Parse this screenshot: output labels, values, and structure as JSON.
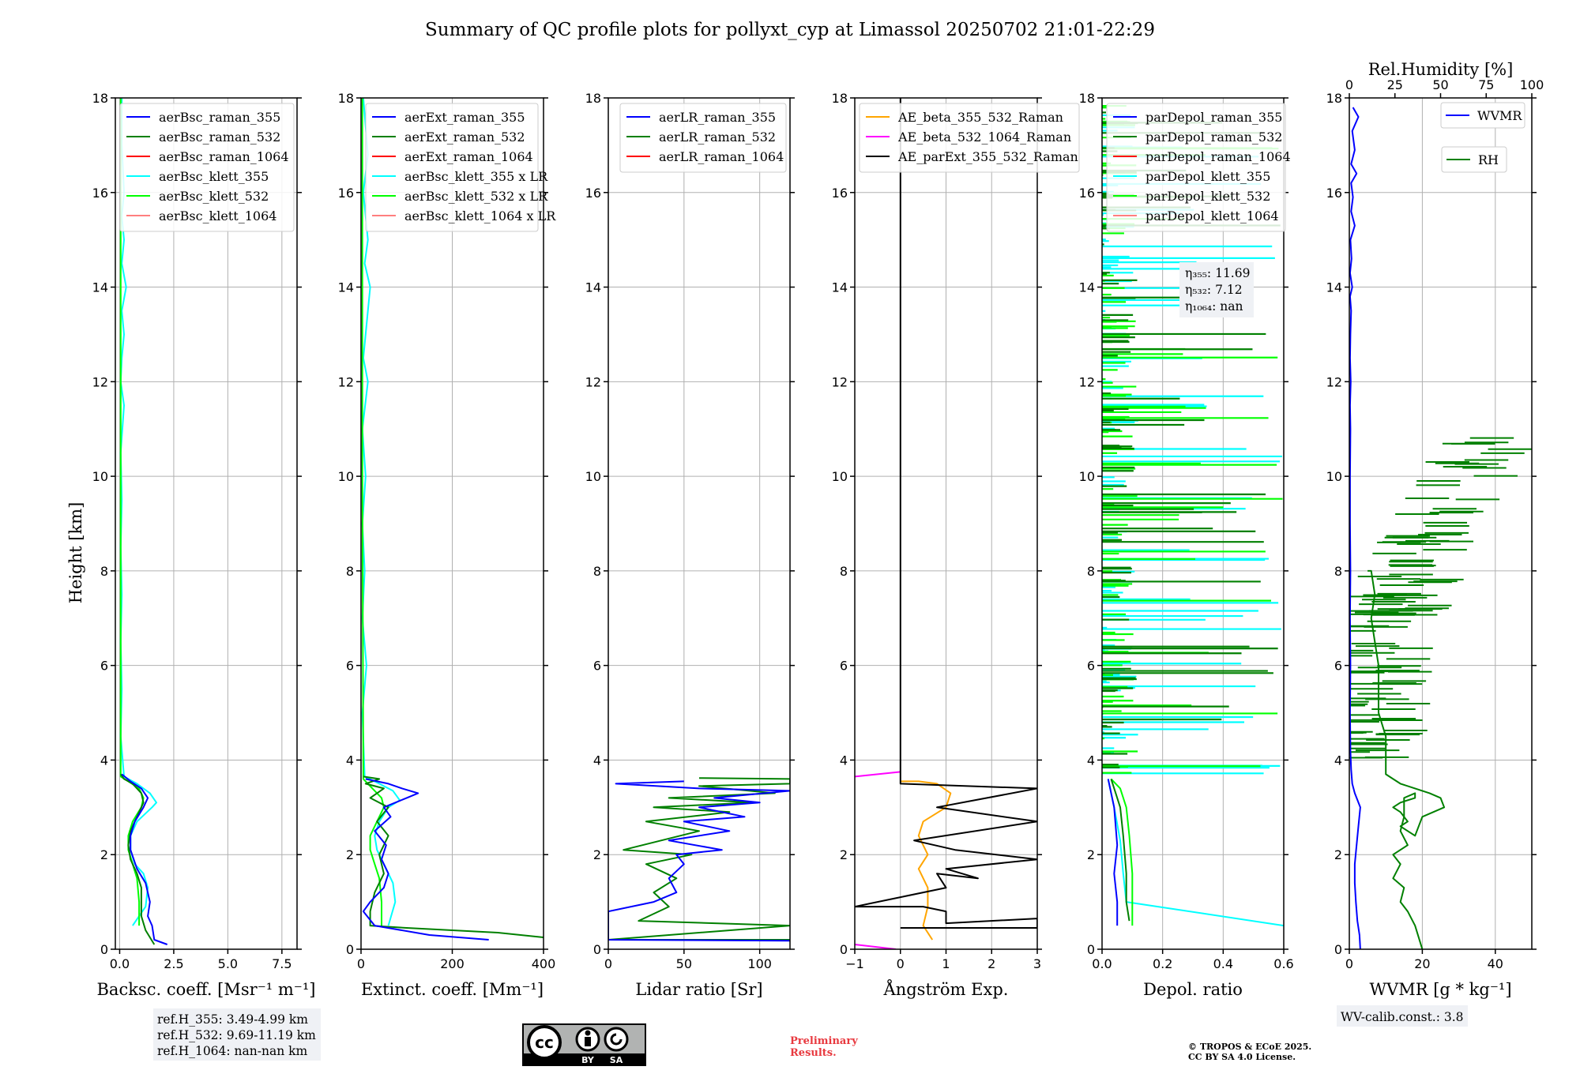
{
  "title": "Summary of QC profile plots for pollyxt_cyp at Limassol 20250702 21:01-22:29",
  "ylabel": "Height [km]",
  "colors": {
    "c355": "#0000ff",
    "c532": "#008000",
    "c1064": "#ff0000",
    "k355": "#00ffff",
    "k532": "#00ff00",
    "k1064": "#ff7f7f",
    "ae1": "#ffa500",
    "ae2": "#ff00ff",
    "ae3": "#000000"
  },
  "chart_data": [
    {
      "type": "line",
      "xlabel": "Backsc. coeff. [Msr⁻¹ m⁻¹]",
      "xlim": [
        -0.2,
        8.2
      ],
      "ylim": [
        0,
        18
      ],
      "xticks": [
        0,
        2.5,
        5,
        7.5
      ],
      "xticklabels": [
        "0.0",
        "2.5",
        "5.0",
        "7.5"
      ],
      "yticks": [
        0,
        2,
        4,
        6,
        8,
        10,
        12,
        14,
        16,
        18
      ],
      "legend": [
        "aerBsc_raman_355",
        "aerBsc_raman_532",
        "aerBsc_raman_1064",
        "aerBsc_klett_355",
        "aerBsc_klett_532",
        "aerBsc_klett_1064"
      ],
      "series": [
        {
          "name": "aerBsc_klett_355",
          "color": "k355",
          "x": [
            0.6,
            1.2,
            1.3,
            1.1,
            0.7,
            0.5,
            0.5,
            0.8,
            1.5,
            1.7,
            1.4,
            0.8,
            0.2,
            0.05,
            0.1,
            0.05,
            0.1,
            0.05,
            0.1,
            0.05,
            0.2,
            0.05,
            0.1,
            0.2,
            0.1,
            0.3,
            0.1,
            0.2,
            0.1,
            0.2,
            0.1,
            0.1
          ],
          "y": [
            0.5,
            0.9,
            1.3,
            1.6,
            1.8,
            2.1,
            2.4,
            2.7,
            3.0,
            3.1,
            3.3,
            3.5,
            3.65,
            4.5,
            5.5,
            6.5,
            7.5,
            8.5,
            9.5,
            10.5,
            11.5,
            12,
            12.5,
            13,
            13.5,
            14,
            14.5,
            15,
            15.5,
            16,
            17,
            18
          ]
        },
        {
          "name": "aerBsc_klett_532",
          "color": "k532",
          "x": [
            0.9,
            0.9,
            0.8,
            0.6,
            0.4,
            0.4,
            0.6,
            1.0,
            1.1,
            0.9,
            0.4,
            0.05,
            0.05,
            0.05
          ],
          "y": [
            0.5,
            1.0,
            1.5,
            1.8,
            2.1,
            2.4,
            2.7,
            3.0,
            3.2,
            3.4,
            3.55,
            3.65,
            10,
            18
          ]
        },
        {
          "name": "aerBsc_raman_532",
          "color": "c532",
          "x": [
            1.6,
            1.2,
            1.0,
            1.0,
            1.0,
            0.8,
            0.5,
            0.4,
            0.5,
            0.8,
            1.1,
            1.0,
            0.6,
            0.2,
            0.05
          ],
          "y": [
            0.1,
            0.4,
            0.7,
            1.0,
            1.3,
            1.6,
            1.9,
            2.2,
            2.5,
            2.8,
            3.1,
            3.3,
            3.5,
            3.6,
            3.7
          ]
        },
        {
          "name": "aerBsc_raman_355",
          "color": "c355",
          "x": [
            2.2,
            1.6,
            1.5,
            1.3,
            1.4,
            1.2,
            0.8,
            0.5,
            0.5,
            0.7,
            1.1,
            1.3,
            1.0,
            0.5,
            0.1
          ],
          "y": [
            0.1,
            0.2,
            0.5,
            0.7,
            1.0,
            1.4,
            1.7,
            2.1,
            2.4,
            2.7,
            3.0,
            3.2,
            3.4,
            3.55,
            3.7
          ]
        }
      ]
    },
    {
      "type": "line",
      "xlabel": "Extinct. coeff. [Mm⁻¹]",
      "xlim": [
        0,
        400
      ],
      "ylim": [
        0,
        18
      ],
      "xticks": [
        0,
        200,
        400
      ],
      "xticklabels": [
        "0",
        "200",
        "400"
      ],
      "yticks": [
        0,
        2,
        4,
        6,
        8,
        10,
        12,
        14,
        16,
        18
      ],
      "legend": [
        "aerExt_raman_355",
        "aerExt_raman_532",
        "aerExt_raman_1064",
        "aerBsc_klett_355 x LR",
        "aerBsc_klett_532 x LR",
        "aerBsc_klett_1064 x LR"
      ],
      "series": [
        {
          "name": "aerBsc_klett_355 x LR",
          "color": "k355",
          "x": [
            60,
            75,
            70,
            50,
            35,
            30,
            40,
            60,
            85,
            70,
            40,
            8,
            3,
            12,
            3,
            8,
            3,
            10,
            3,
            15,
            5,
            10,
            20,
            8,
            15,
            5,
            15,
            5
          ],
          "y": [
            0.5,
            1.0,
            1.4,
            1.8,
            2.1,
            2.4,
            2.7,
            3.0,
            3.15,
            3.35,
            3.5,
            3.65,
            5,
            6,
            7,
            8,
            9,
            10,
            11,
            12,
            12.5,
            13,
            14,
            14.5,
            15,
            16,
            16.8,
            18
          ]
        },
        {
          "name": "aerBsc_klett_532 x LR",
          "color": "k532",
          "x": [
            45,
            45,
            40,
            30,
            20,
            20,
            35,
            50,
            45,
            25,
            5,
            3,
            3
          ],
          "y": [
            0.5,
            1.0,
            1.5,
            1.8,
            2.1,
            2.4,
            2.7,
            3.0,
            3.2,
            3.4,
            3.6,
            10,
            18
          ]
        },
        {
          "name": "aerExt_raman_532",
          "color": "c532",
          "x": [
            400,
            300,
            100,
            20,
            20,
            30,
            50,
            40,
            60,
            35,
            60,
            20,
            50,
            10,
            40,
            5
          ],
          "y": [
            0.25,
            0.35,
            0.45,
            0.5,
            0.8,
            1.2,
            1.6,
            2.0,
            2.4,
            2.7,
            3.0,
            3.2,
            3.4,
            3.5,
            3.6,
            3.65
          ]
        },
        {
          "name": "aerExt_raman_355",
          "color": "c355",
          "x": [
            280,
            150,
            30,
            5,
            20,
            50,
            60,
            45,
            55,
            30,
            65,
            50,
            100,
            125,
            90,
            60,
            10
          ],
          "y": [
            0.2,
            0.3,
            0.5,
            0.8,
            1.0,
            1.3,
            1.6,
            1.9,
            2.2,
            2.5,
            2.8,
            3.0,
            3.2,
            3.3,
            3.4,
            3.5,
            3.6
          ]
        }
      ]
    },
    {
      "type": "line",
      "xlabel": "Lidar ratio [Sr]",
      "xlim": [
        0,
        120
      ],
      "ylim": [
        0,
        18
      ],
      "xticks": [
        0,
        50,
        100
      ],
      "xticklabels": [
        "0",
        "50",
        "100"
      ],
      "yticks": [
        0,
        2,
        4,
        6,
        8,
        10,
        12,
        14,
        16,
        18
      ],
      "legend": [
        "aerLR_raman_355",
        "aerLR_raman_532",
        "aerLR_raman_1064"
      ],
      "series": [
        {
          "name": "aerLR_raman_532",
          "color": "c532",
          "x": [
            120,
            0,
            120,
            20,
            40,
            30,
            45,
            25,
            55,
            10,
            60,
            25,
            80,
            30,
            95,
            40,
            110,
            60,
            120,
            120,
            60
          ],
          "y": [
            0.2,
            0.2,
            0.5,
            0.6,
            0.9,
            1.2,
            1.5,
            1.8,
            2.0,
            2.1,
            2.5,
            2.7,
            2.9,
            3.0,
            3.1,
            3.2,
            3.3,
            3.45,
            3.5,
            3.6,
            3.62
          ]
        },
        {
          "name": "aerLR_raman_355",
          "color": "c355",
          "x": [
            120,
            0,
            0,
            30,
            45,
            40,
            50,
            45,
            75,
            40,
            80,
            50,
            90,
            60,
            100,
            70,
            120,
            60,
            5,
            50
          ],
          "y": [
            0.18,
            0.2,
            0.8,
            1.0,
            1.2,
            1.5,
            1.8,
            2.0,
            2.1,
            2.3,
            2.5,
            2.7,
            2.8,
            3.0,
            3.1,
            3.2,
            3.35,
            3.4,
            3.5,
            3.55
          ]
        }
      ]
    },
    {
      "type": "line",
      "xlabel": "Ångström Exp.",
      "xlim": [
        -1,
        3
      ],
      "ylim": [
        0,
        18
      ],
      "xticks": [
        -1,
        0,
        1,
        2,
        3
      ],
      "xticklabels": [
        "−1",
        "0",
        "1",
        "2",
        "3"
      ],
      "yticks": [
        0,
        2,
        4,
        6,
        8,
        10,
        12,
        14,
        16,
        18
      ],
      "legend": [
        "AE_beta_355_532_Raman",
        "AE_beta_532_1064_Raman",
        "AE_parExt_355_532_Raman"
      ],
      "series": [
        {
          "name": "AE_beta_355_532_Raman",
          "color": "ae1",
          "x": [
            0.7,
            0.5,
            0.6,
            0.6,
            0.4,
            0.6,
            0.4,
            0.5,
            1.0,
            1.1,
            0.8,
            0.4,
            0.0
          ],
          "y": [
            0.2,
            0.5,
            0.9,
            1.3,
            1.7,
            2.0,
            2.4,
            2.7,
            3.0,
            3.3,
            3.5,
            3.55,
            3.55
          ]
        },
        {
          "name": "AE_beta_532_1064_Raman",
          "color": "ae2",
          "x": [
            -1,
            0
          ],
          "y": [
            3.65,
            3.75
          ]
        },
        {
          "name": "AE_beta_532_1064_Raman",
          "color": "ae2",
          "x": [
            -1,
            -0.1
          ],
          "y": [
            0.1,
            0.0
          ]
        },
        {
          "name": "AE_parExt_355_532_Raman",
          "color": "ae3",
          "x": [
            0,
            3,
            3,
            1,
            1,
            0.5,
            -1,
            0,
            1,
            0.8,
            1.7,
            1.0,
            3,
            1.2,
            0.3,
            3,
            0.8,
            3,
            0,
            0
          ],
          "y": [
            0.45,
            0.45,
            0.65,
            0.55,
            0.8,
            0.9,
            0.9,
            1.1,
            1.3,
            1.6,
            1.5,
            1.7,
            1.9,
            2.1,
            2.3,
            2.7,
            3.0,
            3.4,
            3.5,
            18
          ]
        }
      ]
    },
    {
      "type": "line",
      "xlabel": "Depol. ratio",
      "xlim": [
        0,
        0.6
      ],
      "ylim": [
        0,
        18
      ],
      "xticks": [
        0,
        0.2,
        0.4,
        0.6
      ],
      "xticklabels": [
        "0.0",
        "0.2",
        "0.4",
        "0.6"
      ],
      "yticks": [
        0,
        2,
        4,
        6,
        8,
        10,
        12,
        14,
        16,
        18
      ],
      "legend": [
        "parDepol_raman_355",
        "parDepol_raman_532",
        "parDepol_raman_1064",
        "parDepol_klett_355",
        "parDepol_klett_532",
        "parDepol_klett_1064"
      ],
      "annotation": [
        "η₃₅₅: 11.69",
        "η₅₃₂: 7.12",
        "η₁₀₆₄: nan"
      ],
      "series": [
        {
          "name": "parDepol_klett_355",
          "color": "k355",
          "x": [
            0.6,
            0.08,
            0.07,
            0.06,
            0.04,
            0.02
          ],
          "y": [
            0.5,
            1.0,
            1.6,
            2.3,
            3.0,
            3.6
          ]
        },
        {
          "name": "parDepol_klett_532",
          "color": "k532",
          "x": [
            0.1,
            0.1,
            0.1,
            0.09,
            0.08,
            0.06,
            0.03
          ],
          "y": [
            0.5,
            1.0,
            1.6,
            2.4,
            3.0,
            3.4,
            3.6
          ]
        },
        {
          "name": "parDepol_raman_532",
          "color": "c532",
          "x": [
            0.09,
            0.08,
            0.08,
            0.07,
            0.06,
            0.03
          ],
          "y": [
            0.6,
            1.0,
            1.6,
            2.4,
            3.0,
            3.6
          ]
        },
        {
          "name": "parDepol_raman_355",
          "color": "c355",
          "x": [
            0.05,
            0.05,
            0.04,
            0.05,
            0.04,
            0.02
          ],
          "y": [
            0.5,
            1.0,
            1.6,
            2.2,
            3.0,
            3.6
          ]
        }
      ]
    },
    {
      "type": "line",
      "xlabel": "WVMR [g * kg⁻¹]",
      "top_xlabel": "Rel.Humidity [%]",
      "xlim": [
        0,
        50
      ],
      "ylim": [
        0,
        18
      ],
      "xticks": [
        0,
        20,
        40
      ],
      "xticklabels": [
        "0",
        "20",
        "40"
      ],
      "top_xticks": [
        0,
        25,
        50,
        75,
        100
      ],
      "yticks": [
        0,
        2,
        4,
        6,
        8,
        10,
        12,
        14,
        16,
        18
      ],
      "legend": [
        "WVMR",
        "RH"
      ],
      "series": [
        {
          "name": "RH",
          "color": "c532",
          "x": [
            20,
            18,
            16,
            14,
            15,
            12,
            14,
            12,
            16,
            14,
            15,
            15,
            15,
            18,
            18,
            14,
            12,
            14,
            15,
            16,
            14,
            16,
            18,
            20,
            26,
            25,
            22,
            18,
            14,
            12,
            10,
            10,
            10,
            8,
            8,
            8,
            7,
            6,
            7,
            6,
            5,
            5
          ],
          "y": [
            0.0,
            0.5,
            0.8,
            1.0,
            1.3,
            1.5,
            1.8,
            2.0,
            2.2,
            2.5,
            2.8,
            3.0,
            3.2,
            3.3,
            3.2,
            3.1,
            3.0,
            2.9,
            2.8,
            2.7,
            2.6,
            2.5,
            2.4,
            2.8,
            3.0,
            3.2,
            3.3,
            3.4,
            3.5,
            3.6,
            3.7,
            4.0,
            4.5,
            5.0,
            5.5,
            6.0,
            6.5,
            7.0,
            7.5,
            8.0,
            8.0,
            8.0
          ]
        },
        {
          "name": "WVMR",
          "color": "c355",
          "x": [
            3,
            2.8,
            2.2,
            1.8,
            1.5,
            1.5,
            2.0,
            2.5,
            3,
            1.5,
            0.8,
            0.5,
            0.3,
            0.2,
            0.3,
            0.2,
            0.3,
            0.2,
            0.2,
            0.3,
            0.2,
            0.4,
            0.2,
            0.3,
            0.5,
            0.2,
            0.8,
            0.2,
            0.6,
            0.3,
            1.5,
            0.5,
            1.0,
            0.5,
            2.0,
            0.5,
            1.5,
            0.8,
            2.5,
            1.0
          ],
          "y": [
            0.0,
            0.3,
            0.6,
            1.0,
            1.4,
            1.8,
            2.2,
            2.6,
            3.0,
            3.3,
            3.5,
            3.8,
            4.2,
            5.0,
            6.0,
            7.0,
            8.0,
            9.0,
            10.0,
            11.0,
            11.5,
            12.0,
            12.5,
            13.0,
            13.5,
            13.8,
            14.0,
            14.3,
            14.6,
            15.0,
            15.3,
            15.6,
            15.9,
            16.2,
            16.4,
            16.6,
            16.9,
            17.3,
            17.6,
            17.8
          ]
        }
      ]
    }
  ],
  "notes": {
    "refh_355": "ref.H_355: 3.49-4.99 km",
    "refh_532": "ref.H_532: 9.69-11.19 km",
    "refh_1064": "ref.H_1064: nan-nan km",
    "wv_calib": "WV-calib.const.: 3.8",
    "prelim_line1": "Preliminary",
    "prelim_line2": "Results.",
    "copyright_line1": "© TROPOS & ECoE 2025.",
    "copyright_line2": "CC BY SA 4.0 License.",
    "license_badge": {
      "cc": "cc",
      "by": "BY",
      "sa": "SA"
    }
  }
}
